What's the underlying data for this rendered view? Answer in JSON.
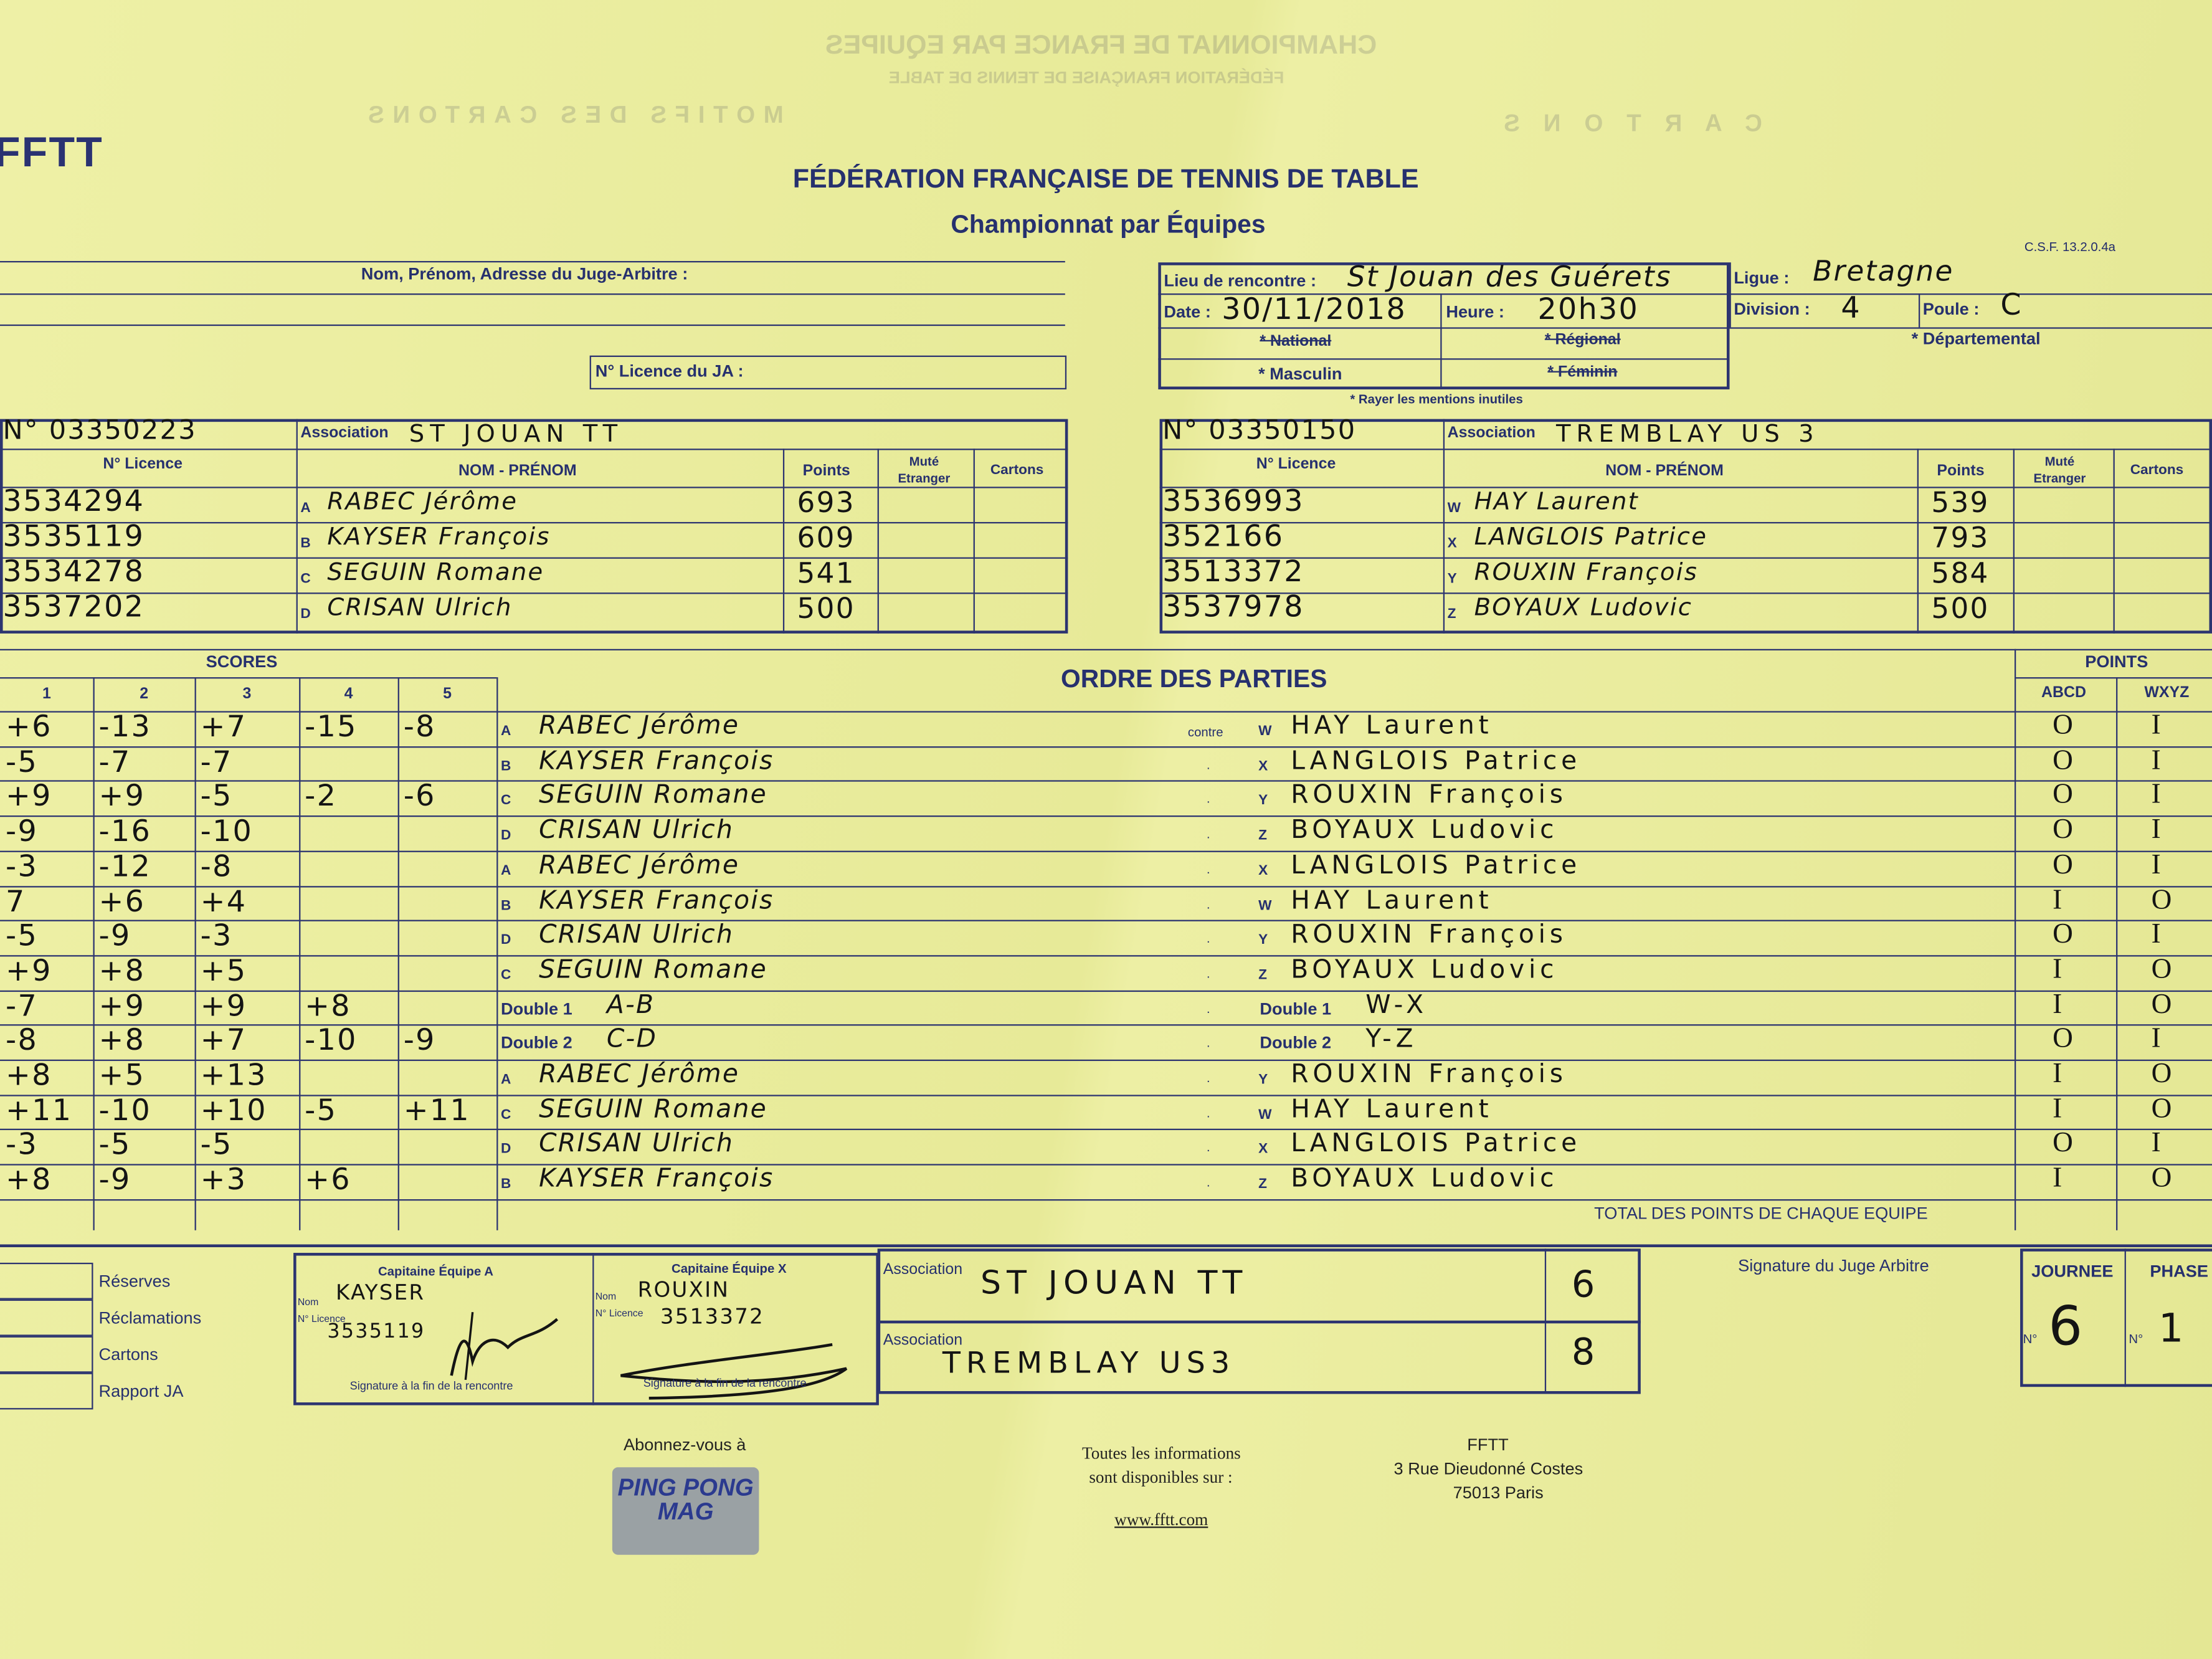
{
  "bleed_through": [
    "CHAMPIONNAT DE FRANCE PAR EQUIPES",
    "FÉDÉRATION FRANÇAISE DE TENNIS DE TABLE",
    "MOTIFS DES CARTONS",
    "C A R T O N S"
  ],
  "header": {
    "logo": "FFTT",
    "title": "FÉDÉRATION FRANÇAISE DE TENNIS DE TABLE",
    "subtitle": "Championnat par Équipes",
    "form_code": "C.S.F. 13.2.0.4a"
  },
  "ja": {
    "name_label": "Nom, Prénom, Adresse du Juge-Arbitre :",
    "licence_label": "N° Licence du JA :"
  },
  "info": {
    "lieu_label": "Lieu de rencontre :",
    "lieu": "St Jouan des Guérets",
    "date_label": "Date :",
    "date": "30/11/2018",
    "heure_label": "Heure :",
    "heure": "20h30",
    "ligue_label": "Ligue :",
    "ligue": "Bretagne",
    "division_label": "Division :",
    "division": "4",
    "poule_label": "Poule :",
    "poule": "C",
    "national": "* National",
    "regional": "* Régional",
    "departemental": "* Départemental",
    "masculin": "* Masculin",
    "feminin": "* Féminin",
    "note": "* Rayer les mentions inutiles"
  },
  "labels": {
    "association": "Association",
    "licence": "N° Licence",
    "nom_prenom": "NOM - PRÉNOM",
    "points": "Points",
    "mute": "Muté Etranger",
    "cartons": "Cartons",
    "scores": "SCORES",
    "ordre": "ORDRE DES PARTIES",
    "points_header": "POINTS",
    "abcd": "ABCD",
    "wxyz": "WXYZ",
    "contre": "contre",
    "total": "TOTAL DES POINTS DE CHAQUE EQUIPE",
    "set_numbers": [
      "1",
      "2",
      "3",
      "4",
      "5"
    ]
  },
  "team_a": {
    "number": "N° 03350223",
    "association": "ST JOUAN TT",
    "players": [
      {
        "letter": "A",
        "licence": "3534294",
        "name": "RABEC Jérôme",
        "points": "693"
      },
      {
        "letter": "B",
        "licence": "3535119",
        "name": "KAYSER François",
        "points": "609"
      },
      {
        "letter": "C",
        "licence": "3534278",
        "name": "SEGUIN Romane",
        "points": "541"
      },
      {
        "letter": "D",
        "licence": "3537202",
        "name": "CRISAN Ulrich",
        "points": "500"
      }
    ]
  },
  "team_x": {
    "number": "N° 03350150",
    "association": "TREMBLAY US 3",
    "players": [
      {
        "letter": "W",
        "licence": "3536993",
        "name": "HAY Laurent",
        "points": "539"
      },
      {
        "letter": "X",
        "licence": "352166",
        "name": "LANGLOIS Patrice",
        "points": "793"
      },
      {
        "letter": "Y",
        "licence": "3513372",
        "name": "ROUXIN François",
        "points": "584"
      },
      {
        "letter": "Z",
        "licence": "3537978",
        "name": "BOYAUX Ludovic",
        "points": "500"
      }
    ]
  },
  "matches": [
    {
      "sets": [
        "+6",
        "-13",
        "+7",
        "-15",
        "-8"
      ],
      "a_code": "A",
      "a_name": "RABEC Jérôme",
      "sep": "contre",
      "x_code": "W",
      "x_name": "HAY Laurent",
      "pa": "O",
      "px": "I"
    },
    {
      "sets": [
        "-5",
        "-7",
        "-7",
        "",
        ""
      ],
      "a_code": "B",
      "a_name": "KAYSER François",
      "sep": "·",
      "x_code": "X",
      "x_name": "LANGLOIS Patrice",
      "pa": "O",
      "px": "I"
    },
    {
      "sets": [
        "+9",
        "+9",
        "-5",
        "-2",
        "-6"
      ],
      "a_code": "C",
      "a_name": "SEGUIN Romane",
      "sep": "·",
      "x_code": "Y",
      "x_name": "ROUXIN François",
      "pa": "O",
      "px": "I"
    },
    {
      "sets": [
        "-9",
        "-16",
        "-10",
        "",
        ""
      ],
      "a_code": "D",
      "a_name": "CRISAN Ulrich",
      "sep": "·",
      "x_code": "Z",
      "x_name": "BOYAUX Ludovic",
      "pa": "O",
      "px": "I"
    },
    {
      "sets": [
        "-3",
        "-12",
        "-8",
        "",
        ""
      ],
      "a_code": "A",
      "a_name": "RABEC Jérôme",
      "sep": "·",
      "x_code": "X",
      "x_name": "LANGLOIS Patrice",
      "pa": "O",
      "px": "I"
    },
    {
      "sets": [
        "7",
        "+6",
        "+4",
        "",
        ""
      ],
      "a_code": "B",
      "a_name": "KAYSER François",
      "sep": "·",
      "x_code": "W",
      "x_name": "HAY Laurent",
      "pa": "I",
      "px": "O"
    },
    {
      "sets": [
        "-5",
        "-9",
        "-3",
        "",
        ""
      ],
      "a_code": "D",
      "a_name": "CRISAN Ulrich",
      "sep": "·",
      "x_code": "Y",
      "x_name": "ROUXIN François",
      "pa": "O",
      "px": "I"
    },
    {
      "sets": [
        "+9",
        "+8",
        "+5",
        "",
        ""
      ],
      "a_code": "C",
      "a_name": "SEGUIN Romane",
      "sep": "·",
      "x_code": "Z",
      "x_name": "BOYAUX Ludovic",
      "pa": "I",
      "px": "O"
    },
    {
      "sets": [
        "-7",
        "+9",
        "+9",
        "+8",
        ""
      ],
      "a_code": "Double 1",
      "a_name": "A-B",
      "sep": "·",
      "x_code": "Double 1",
      "x_name": "W-X",
      "pa": "I",
      "px": "O"
    },
    {
      "sets": [
        "-8",
        "+8",
        "+7",
        "-10",
        "-9"
      ],
      "a_code": "Double 2",
      "a_name": "C-D",
      "sep": "·",
      "x_code": "Double 2",
      "x_name": "Y-Z",
      "pa": "O",
      "px": "I"
    },
    {
      "sets": [
        "+8",
        "+5",
        "+13",
        "",
        ""
      ],
      "a_code": "A",
      "a_name": "RABEC Jérôme",
      "sep": "·",
      "x_code": "Y",
      "x_name": "ROUXIN François",
      "pa": "I",
      "px": "O"
    },
    {
      "sets": [
        "+11",
        "-10",
        "+10",
        "-5",
        "+11"
      ],
      "a_code": "C",
      "a_name": "SEGUIN Romane",
      "sep": "·",
      "x_code": "W",
      "x_name": "HAY Laurent",
      "pa": "I",
      "px": "O"
    },
    {
      "sets": [
        "-3",
        "-5",
        "-5",
        "",
        ""
      ],
      "a_code": "D",
      "a_name": "CRISAN Ulrich",
      "sep": "·",
      "x_code": "X",
      "x_name": "LANGLOIS Patrice",
      "pa": "O",
      "px": "I"
    },
    {
      "sets": [
        "+8",
        "-9",
        "+3",
        "+6",
        ""
      ],
      "a_code": "B",
      "a_name": "KAYSER François",
      "sep": "·",
      "x_code": "Z",
      "x_name": "BOYAUX Ludovic",
      "pa": "I",
      "px": "O"
    }
  ],
  "footer_boxes": {
    "checks": [
      "Réserves",
      "Réclamations",
      "Cartons",
      "Rapport JA"
    ],
    "cap_a": {
      "title": "Capitaine Équipe A",
      "nom_label": "Nom",
      "licence_label": "N° Licence",
      "nom": "KAYSER",
      "licence": "3535119",
      "sig_label": "Signature à la fin de la rencontre"
    },
    "cap_x": {
      "title": "Capitaine Équipe X",
      "nom_label": "Nom",
      "licence_label": "N° Licence",
      "nom": "ROUXIN",
      "licence": "3513372",
      "sig_label": "Signature à la fin de la rencontre"
    },
    "result": {
      "label": "Association",
      "team_a": "ST JOUAN TT",
      "score_a": "6",
      "team_x": "TREMBLAY US3",
      "score_x": "8"
    },
    "ja_signature": "Signature du Juge Arbitre",
    "journee_label": "JOURNEE",
    "journee": "6",
    "phase_label": "PHASE",
    "phase": "1",
    "no_label": "N°"
  },
  "footer": {
    "subscribe": "Abonnez-vous à",
    "mag_logo": "PING PONG MAG",
    "info1": "Toutes les informations",
    "info2": "sont disponibles sur :",
    "website": "www.fftt.com",
    "org": "FFTT",
    "addr1": "3 Rue Dieudonné Costes",
    "addr2": "75013 Paris"
  },
  "colors": {
    "paper": "#e9ec9b",
    "print": "#26306e",
    "ink": "#141414"
  }
}
